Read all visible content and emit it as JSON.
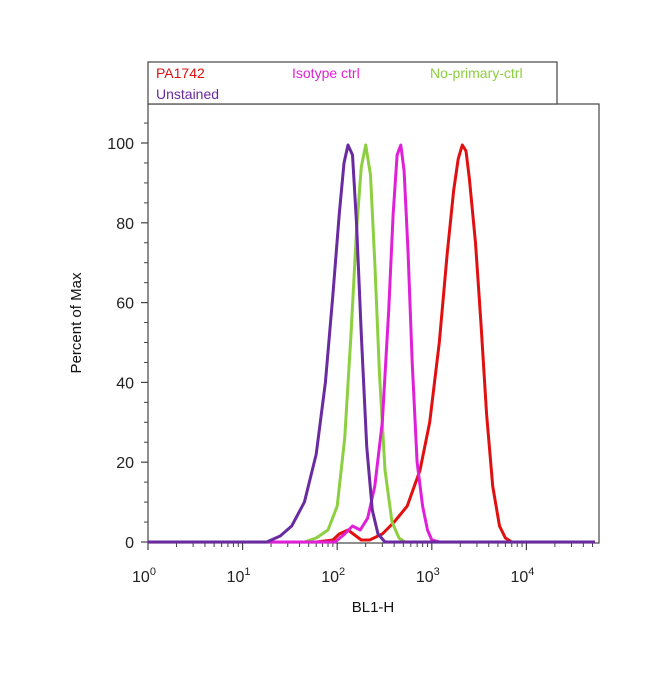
{
  "chart_data": {
    "type": "line",
    "xlabel": "BL1-H",
    "ylabel": "Percent of Max",
    "x_scale": "log",
    "xlim": [
      1,
      60000
    ],
    "ylim": [
      0,
      110
    ],
    "x_ticks": [
      {
        "value": 1,
        "base": "10",
        "exp": "0"
      },
      {
        "value": 10,
        "base": "10",
        "exp": "1"
      },
      {
        "value": 100,
        "base": "10",
        "exp": "2"
      },
      {
        "value": 1000,
        "base": "10",
        "exp": "3"
      },
      {
        "value": 10000,
        "base": "10",
        "exp": "4"
      }
    ],
    "y_ticks": [
      0,
      20,
      40,
      60,
      80,
      100
    ],
    "grid": false,
    "legend_position": "top",
    "series": [
      {
        "name": "PA1742",
        "color": "#e01010",
        "points": [
          [
            1,
            0
          ],
          [
            60,
            0
          ],
          [
            90,
            0.5
          ],
          [
            105,
            2
          ],
          [
            130,
            3
          ],
          [
            180,
            0.5
          ],
          [
            220,
            0.5
          ],
          [
            300,
            2
          ],
          [
            400,
            5
          ],
          [
            550,
            9
          ],
          [
            750,
            18
          ],
          [
            950,
            30
          ],
          [
            1200,
            50
          ],
          [
            1450,
            72
          ],
          [
            1700,
            88
          ],
          [
            1900,
            96
          ],
          [
            2100,
            99.5
          ],
          [
            2300,
            98
          ],
          [
            2500,
            91
          ],
          [
            2900,
            75
          ],
          [
            3300,
            55
          ],
          [
            3800,
            32
          ],
          [
            4400,
            14
          ],
          [
            5200,
            4
          ],
          [
            6000,
            1
          ],
          [
            7000,
            0
          ],
          [
            60000,
            0
          ]
        ]
      },
      {
        "name": "Isotype ctrl",
        "color": "#e020d8",
        "points": [
          [
            1,
            0
          ],
          [
            95,
            0
          ],
          [
            120,
            2
          ],
          [
            145,
            4
          ],
          [
            175,
            3
          ],
          [
            210,
            6
          ],
          [
            250,
            14
          ],
          [
            300,
            30
          ],
          [
            350,
            58
          ],
          [
            390,
            82
          ],
          [
            430,
            97
          ],
          [
            470,
            99.5
          ],
          [
            510,
            93
          ],
          [
            560,
            73
          ],
          [
            620,
            45
          ],
          [
            700,
            20
          ],
          [
            800,
            9
          ],
          [
            900,
            3
          ],
          [
            1000,
            0.5
          ],
          [
            1200,
            0
          ],
          [
            60000,
            0
          ]
        ]
      },
      {
        "name": "No-primary-ctrl",
        "color": "#8ccf40",
        "points": [
          [
            1,
            0
          ],
          [
            45,
            0
          ],
          [
            60,
            1
          ],
          [
            80,
            3
          ],
          [
            100,
            9
          ],
          [
            120,
            26
          ],
          [
            140,
            52
          ],
          [
            160,
            78
          ],
          [
            180,
            94
          ],
          [
            200,
            99.5
          ],
          [
            225,
            92
          ],
          [
            250,
            70
          ],
          [
            280,
            42
          ],
          [
            320,
            18
          ],
          [
            380,
            5
          ],
          [
            450,
            1
          ],
          [
            520,
            0
          ],
          [
            60000,
            0
          ]
        ]
      },
      {
        "name": "Unstained",
        "color": "#6a2aa0",
        "points": [
          [
            1,
            0
          ],
          [
            18,
            0
          ],
          [
            25,
            1.5
          ],
          [
            33,
            4
          ],
          [
            45,
            10
          ],
          [
            60,
            22
          ],
          [
            75,
            40
          ],
          [
            90,
            62
          ],
          [
            105,
            82
          ],
          [
            118,
            95
          ],
          [
            130,
            99.5
          ],
          [
            145,
            97
          ],
          [
            160,
            80
          ],
          [
            180,
            52
          ],
          [
            205,
            24
          ],
          [
            235,
            8
          ],
          [
            270,
            2
          ],
          [
            320,
            0
          ],
          [
            60000,
            0
          ]
        ]
      }
    ]
  }
}
